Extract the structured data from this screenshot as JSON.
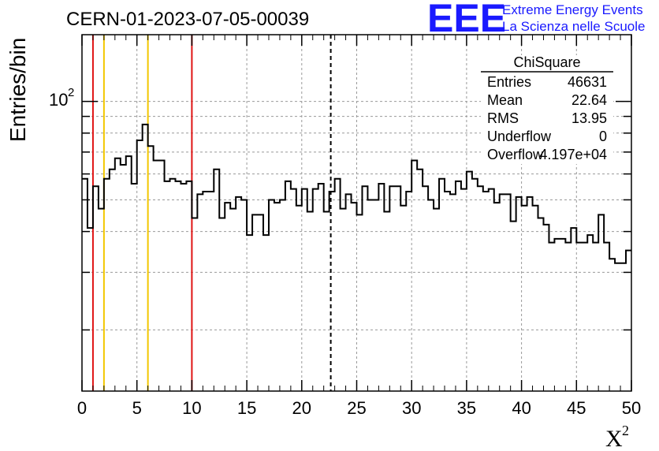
{
  "chart_data": {
    "type": "histogram",
    "title": "CERN-01-2023-07-05-00039",
    "xlabel": "X",
    "xlabel_superscript": "2",
    "ylabel": "Entries/bin",
    "xlim": [
      0,
      50
    ],
    "ylim": [
      13,
      160
    ],
    "y_scale": "log",
    "x_ticks": [
      0,
      5,
      10,
      15,
      20,
      25,
      30,
      35,
      40,
      45,
      50
    ],
    "y_tick_label": {
      "base": "10",
      "exp": "2",
      "value": 100
    },
    "grid": true,
    "bin_width": 0.5,
    "values": [
      58,
      41,
      55,
      47,
      58,
      62,
      67,
      64,
      68,
      56,
      76,
      85,
      73,
      66,
      66,
      57,
      58,
      57,
      56,
      57,
      44,
      52,
      53,
      53,
      62,
      44,
      49,
      47,
      51,
      50,
      39,
      45,
      45,
      39,
      50,
      49,
      50,
      57,
      54,
      48,
      54,
      46,
      54,
      56,
      46,
      53,
      58,
      47,
      52,
      49,
      45,
      55,
      50,
      50,
      56,
      46,
      55,
      55,
      48,
      53,
      66,
      62,
      55,
      50,
      47,
      58,
      53,
      52,
      57,
      54,
      61,
      58,
      55,
      53,
      54,
      49,
      52,
      52,
      43,
      51,
      48,
      51,
      48,
      44,
      42,
      37,
      38,
      38,
      37,
      41,
      37,
      37,
      39,
      37,
      45,
      37,
      33,
      32,
      32,
      35,
      35
    ],
    "vertical_lines": [
      {
        "x": 1,
        "color": "#e01414"
      },
      {
        "x": 2,
        "color": "#f2c700"
      },
      {
        "x": 6,
        "color": "#f2c700"
      },
      {
        "x": 10,
        "color": "#e01414"
      },
      {
        "x": 22.64,
        "color": "#000000",
        "style": "dashed"
      }
    ]
  },
  "stats": {
    "name": "ChiSquare",
    "rows": [
      {
        "label": "Entries",
        "value": "46631"
      },
      {
        "label": "Mean",
        "value": "22.64"
      },
      {
        "label": "RMS",
        "value": "13.95"
      },
      {
        "label": "Underflow",
        "value": "0"
      },
      {
        "label": "Overflow",
        "value": "4.197e+04"
      }
    ]
  },
  "logo": {
    "mark": "EEE",
    "line1": "Extreme Energy Events",
    "line2": "La Scienza nelle Scuole"
  },
  "colors": {
    "histogram": "#000000",
    "grid": "#999999",
    "logo": "#1a1aff"
  }
}
